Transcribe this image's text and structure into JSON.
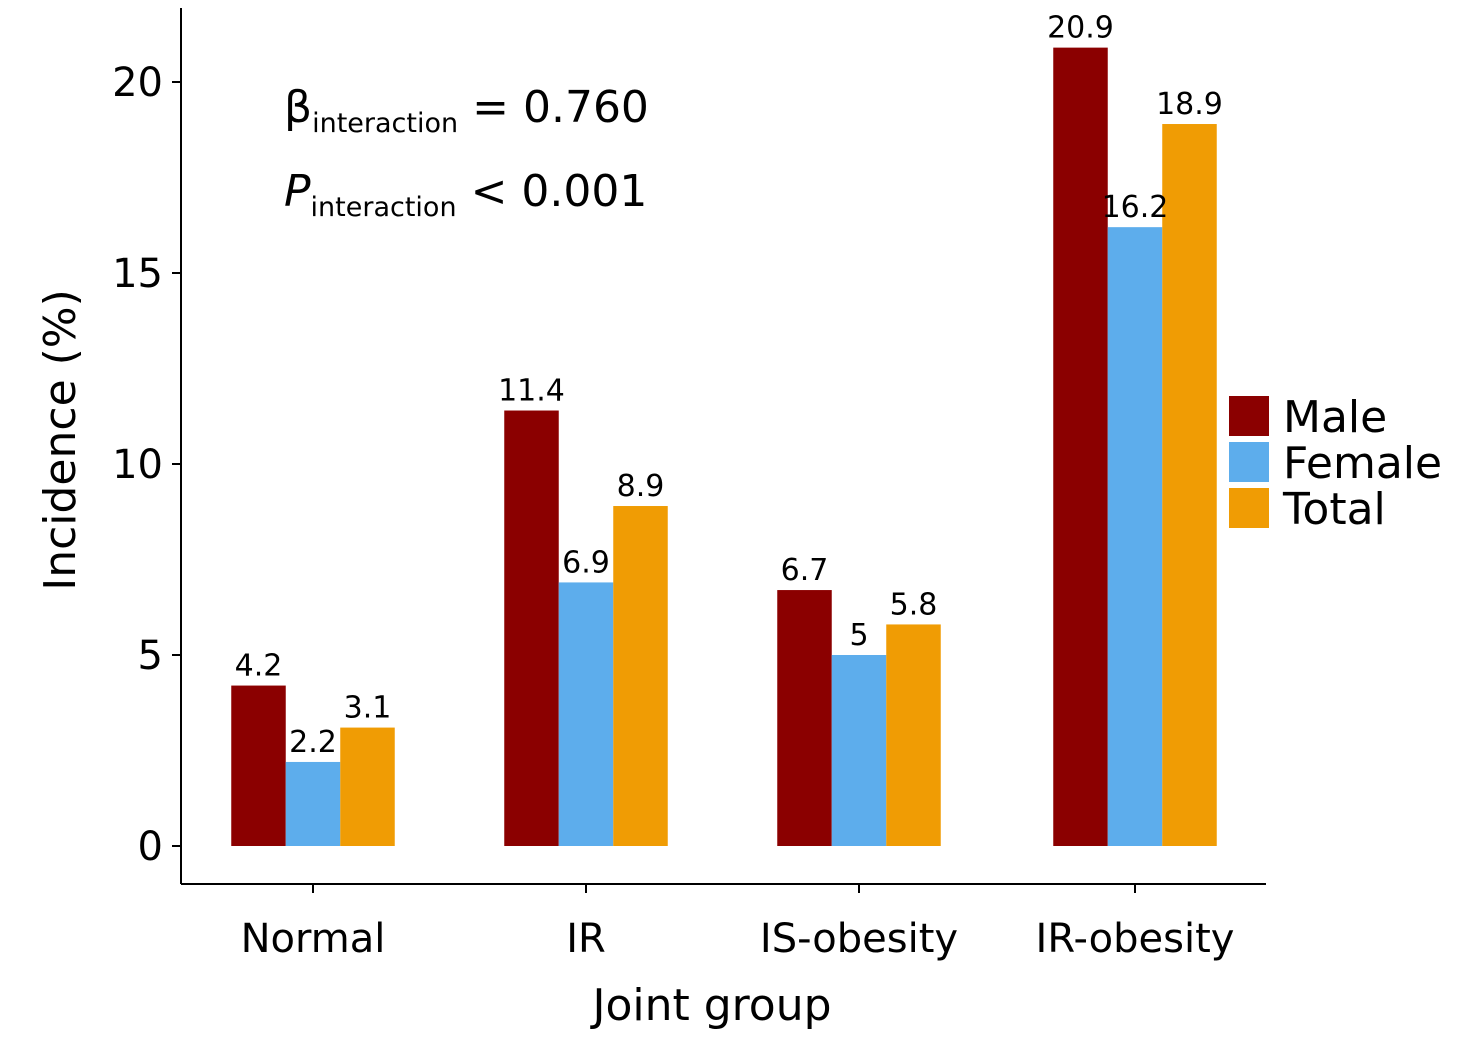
{
  "chart_data": {
    "type": "bar",
    "xlabel": "Joint group",
    "ylabel": "Incidence (%)",
    "categories": [
      "Normal",
      "IR",
      "IS-obesity",
      "IR-obesity"
    ],
    "series": [
      {
        "name": "Male",
        "color": "#8B0000",
        "values": [
          4.2,
          11.4,
          6.7,
          20.9
        ],
        "labels": [
          "4.2",
          "11.4",
          "6.7",
          "20.9"
        ]
      },
      {
        "name": "Female",
        "color": "#5DADEC",
        "values": [
          2.2,
          6.9,
          5,
          16.2
        ],
        "labels": [
          "2.2",
          "6.9",
          "5",
          "16.2"
        ]
      },
      {
        "name": "Total",
        "color": "#F09C04",
        "values": [
          3.1,
          8.9,
          5.8,
          18.9
        ],
        "labels": [
          "3.1",
          "8.9",
          "5.8",
          "18.9"
        ]
      }
    ],
    "ylim": [
      0,
      22
    ],
    "yticks": [
      0,
      5,
      10,
      15,
      20
    ],
    "grid": false,
    "legend_position": "right",
    "annotations": [
      {
        "symbol": "β",
        "subscript": "interaction",
        "rest": " = 0.760",
        "italic": false
      },
      {
        "symbol": "P",
        "subscript": "interaction",
        "rest": " < 0.001",
        "italic": true
      }
    ]
  }
}
